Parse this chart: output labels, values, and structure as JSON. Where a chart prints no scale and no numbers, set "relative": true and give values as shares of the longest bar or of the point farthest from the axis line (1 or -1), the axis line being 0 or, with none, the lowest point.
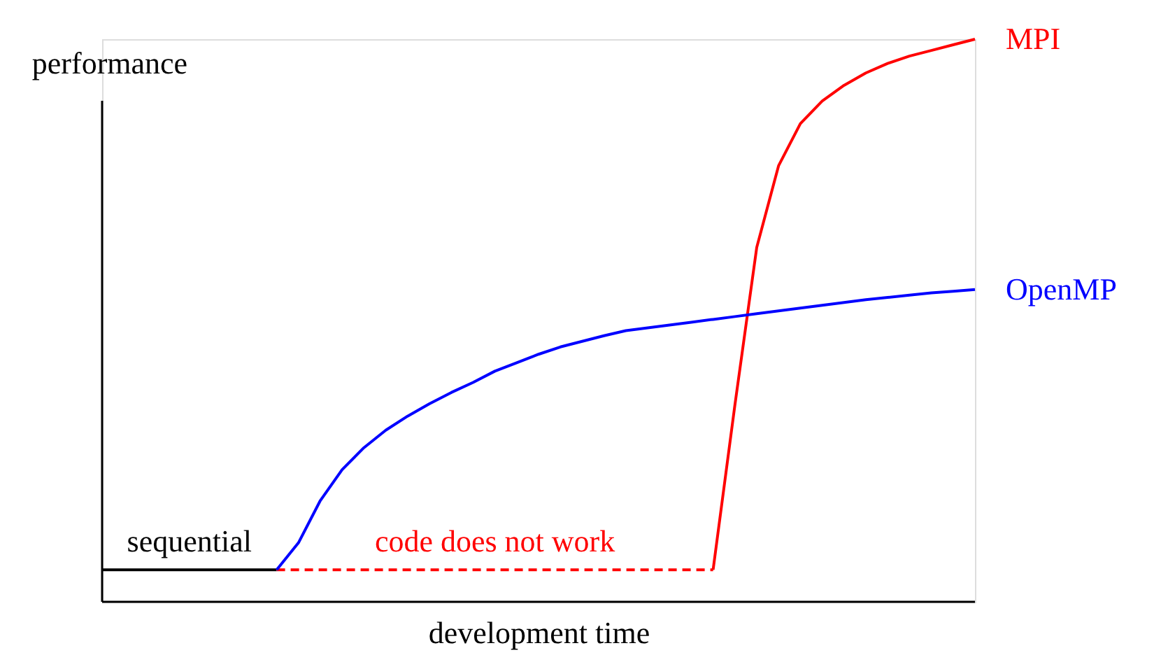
{
  "chart_data": {
    "type": "line",
    "relative": true,
    "xlabel": "development time",
    "ylabel": "performance",
    "grid": false,
    "tick_labels": false,
    "categories": [
      null,
      null,
      null,
      null,
      null,
      null,
      null,
      null,
      null,
      null,
      null,
      null,
      null,
      null,
      null,
      null,
      null,
      null,
      null,
      null,
      null,
      null,
      null,
      null,
      null,
      null,
      null,
      null,
      null,
      null,
      null,
      null,
      null,
      null,
      null,
      null,
      null,
      null,
      null,
      null,
      null
    ],
    "series": [
      {
        "name": "sequential",
        "color": "#000000",
        "values": [
          0.057,
          0.057,
          0.057,
          0.057,
          0.057,
          0.057,
          0.057,
          0.057,
          0.057,
          null,
          null,
          null,
          null,
          null,
          null,
          null,
          null,
          null,
          null,
          null,
          null,
          null,
          null,
          null,
          null,
          null,
          null,
          null,
          null,
          null,
          null,
          null,
          null,
          null,
          null,
          null,
          null,
          null,
          null,
          null,
          null
        ]
      },
      {
        "name": "code does not work",
        "color": "#ff0000",
        "line_style": "dashed",
        "values": [
          null,
          null,
          null,
          null,
          null,
          null,
          null,
          null,
          0.057,
          0.057,
          0.057,
          0.057,
          0.057,
          0.057,
          0.057,
          0.057,
          0.057,
          0.057,
          0.057,
          0.057,
          0.057,
          0.057,
          0.057,
          0.057,
          0.057,
          0.057,
          0.057,
          0.057,
          0.057,
          null,
          null,
          null,
          null,
          null,
          null,
          null,
          null,
          null,
          null,
          null,
          null
        ]
      },
      {
        "name": "MPI",
        "color": "#ff0000",
        "values": [
          null,
          null,
          null,
          null,
          null,
          null,
          null,
          null,
          null,
          null,
          null,
          null,
          null,
          null,
          null,
          null,
          null,
          null,
          null,
          null,
          null,
          null,
          null,
          null,
          null,
          null,
          null,
          null,
          0.057,
          0.35,
          0.63,
          0.775,
          0.85,
          0.89,
          0.918,
          0.94,
          0.957,
          0.97,
          0.98,
          0.99,
          1.0
        ]
      },
      {
        "name": "OpenMP",
        "color": "#0000ff",
        "values": [
          null,
          null,
          null,
          null,
          null,
          null,
          null,
          null,
          0.057,
          0.105,
          0.18,
          0.235,
          0.274,
          0.305,
          0.33,
          0.352,
          0.372,
          0.39,
          0.41,
          0.425,
          0.44,
          0.453,
          0.463,
          0.473,
          0.482,
          0.487,
          0.492,
          0.497,
          0.502,
          0.507,
          0.512,
          0.517,
          0.522,
          0.527,
          0.532,
          0.537,
          0.541,
          0.545,
          0.549,
          0.552,
          0.555
        ]
      }
    ]
  }
}
